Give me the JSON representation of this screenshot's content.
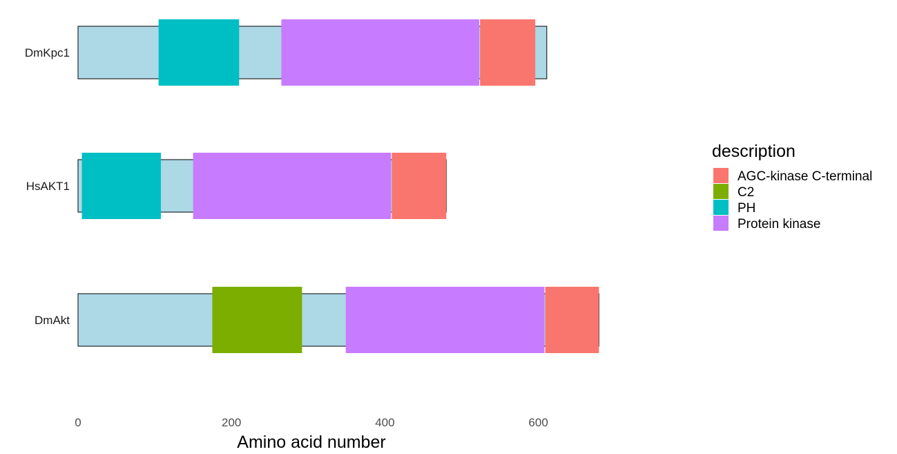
{
  "chart_data": {
    "type": "bar",
    "orientation": "horizontal",
    "xlabel": "Amino acid number",
    "ylabel": "",
    "xlim": [
      0,
      700
    ],
    "x_ticks": [
      0,
      200,
      400,
      600
    ],
    "grid": false,
    "legend_title": "description",
    "legend_position": "right",
    "categories": [
      "DmKpc1",
      "HsAKT1",
      "DmAkt"
    ],
    "proteins": [
      {
        "name": "DmKpc1",
        "length": 611
      },
      {
        "name": "HsAKT1",
        "length": 480
      },
      {
        "name": "DmAkt",
        "length": 679
      }
    ],
    "legend": [
      {
        "label": "AGC-kinase C-terminal",
        "color": "#F8766D"
      },
      {
        "label": "C2",
        "color": "#7CAE00"
      },
      {
        "label": "PH",
        "color": "#00BFC4"
      },
      {
        "label": "Protein kinase",
        "color": "#C77CFF"
      }
    ],
    "backbone_color": "#ADD8E6",
    "domains": [
      {
        "protein": "DmKpc1",
        "description": "PH",
        "start": 105,
        "end": 210
      },
      {
        "protein": "DmKpc1",
        "description": "Protein kinase",
        "start": 265,
        "end": 523
      },
      {
        "protein": "DmKpc1",
        "description": "AGC-kinase C-terminal",
        "start": 524,
        "end": 596
      },
      {
        "protein": "HsAKT1",
        "description": "PH",
        "start": 5,
        "end": 108
      },
      {
        "protein": "HsAKT1",
        "description": "Protein kinase",
        "start": 150,
        "end": 408
      },
      {
        "protein": "HsAKT1",
        "description": "AGC-kinase C-terminal",
        "start": 409,
        "end": 480
      },
      {
        "protein": "DmAkt",
        "description": "C2",
        "start": 175,
        "end": 292
      },
      {
        "protein": "DmAkt",
        "description": "Protein kinase",
        "start": 349,
        "end": 608
      },
      {
        "protein": "DmAkt",
        "description": "AGC-kinase C-terminal",
        "start": 609,
        "end": 679
      }
    ]
  }
}
